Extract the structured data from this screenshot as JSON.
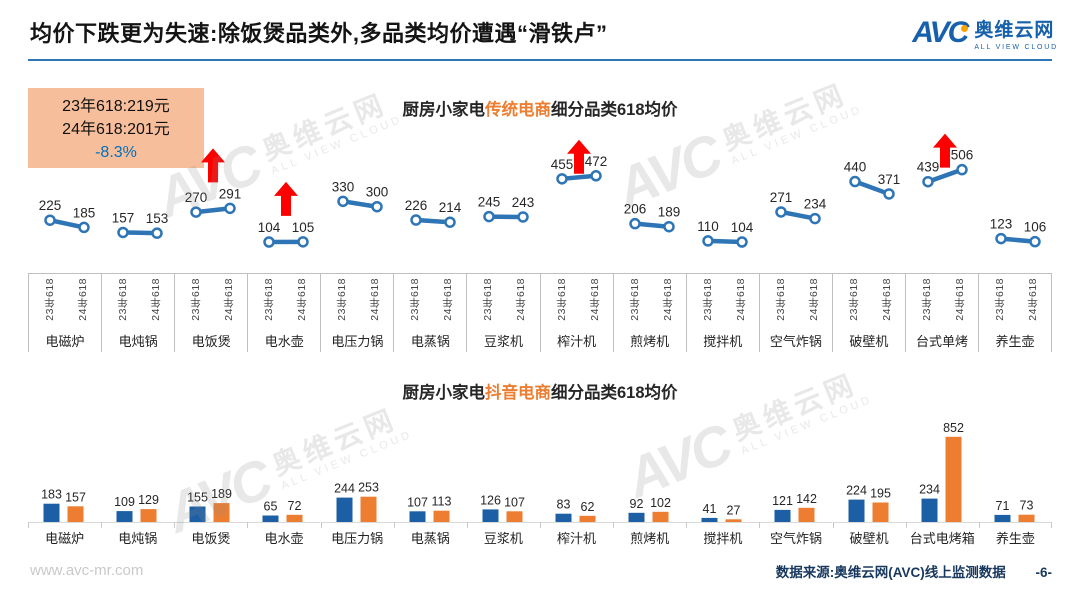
{
  "page": {
    "title": "均价下跌更为失速:除饭煲品类外,多品类均价遭遇“滑铁卢”",
    "footer_left": "www.avc-mr.com",
    "footer_source": "数据来源:奥维云网(AVC)线上监测数据",
    "page_number": "-6-"
  },
  "logo": {
    "avc": "AVC",
    "cn": "奥维云网",
    "en": "ALL VIEW CLOUD"
  },
  "watermark": {
    "avc": "AVC",
    "cn": "奥维云网",
    "en": "ALL VIEW CLOUD"
  },
  "info_box": {
    "line1": "23年618:219元",
    "line2": "24年618:201元",
    "line3": "-8.3%"
  },
  "colors": {
    "accent_blue": "#2E75B6",
    "bar_blue": "#1C5FA5",
    "bar_orange": "#ED7D31",
    "highlight_orange": "#ED7D31",
    "arrow_red": "#FF0000",
    "pct_blue": "#0070C0",
    "info_box_bg": "#F6BE9A",
    "footer_navy": "#17375E",
    "axis_gray": "#BFBFBF",
    "baseline_gray": "#D9D9D9",
    "tick_gray": "#C9C9C9",
    "label_dark": "#262626"
  },
  "chart_data": [
    {
      "type": "line",
      "title_prefix": "厨房小家电",
      "title_highlight": "传统电商",
      "title_suffix": "细分品类618均价",
      "series_labels": [
        "23年618",
        "24年618"
      ],
      "categories": [
        "电磁炉",
        "电炖锅",
        "电饭煲",
        "电水壶",
        "电压力锅",
        "电蒸锅",
        "豆浆机",
        "榨汁机",
        "煎烤机",
        "搅拌机",
        "空气炸锅",
        "破壁机",
        "台式单烤",
        "养生壶"
      ],
      "series": [
        {
          "name": "23年618",
          "values": [
            225,
            157,
            270,
            104,
            330,
            226,
            245,
            455,
            206,
            110,
            271,
            440,
            439,
            123
          ]
        },
        {
          "name": "24年618",
          "values": [
            185,
            153,
            291,
            105,
            300,
            214,
            243,
            472,
            189,
            104,
            234,
            371,
            506,
            106
          ]
        }
      ],
      "up_arrow_indices": [
        2,
        3,
        7,
        12
      ],
      "ylim": [
        80,
        540
      ],
      "grid": false,
      "legend": "none"
    },
    {
      "type": "bar",
      "title_prefix": "厨房小家电",
      "title_highlight": "抖音电商",
      "title_suffix": "细分品类618均价",
      "series_labels": [
        "23年618",
        "24年618"
      ],
      "categories": [
        "电磁炉",
        "电炖锅",
        "电饭煲",
        "电水壶",
        "电压力锅",
        "电蒸锅",
        "豆浆机",
        "榨汁机",
        "煎烤机",
        "搅拌机",
        "空气炸锅",
        "破壁机",
        "台式电烤箱",
        "养生壶"
      ],
      "series": [
        {
          "name": "23年618",
          "values": [
            183,
            109,
            155,
            65,
            244,
            107,
            126,
            83,
            92,
            41,
            121,
            224,
            234,
            71
          ]
        },
        {
          "name": "24年618",
          "values": [
            157,
            129,
            189,
            72,
            253,
            113,
            107,
            62,
            102,
            27,
            142,
            195,
            852,
            73
          ]
        }
      ],
      "ylim": [
        0,
        900
      ],
      "grid": false,
      "legend": "none"
    }
  ]
}
